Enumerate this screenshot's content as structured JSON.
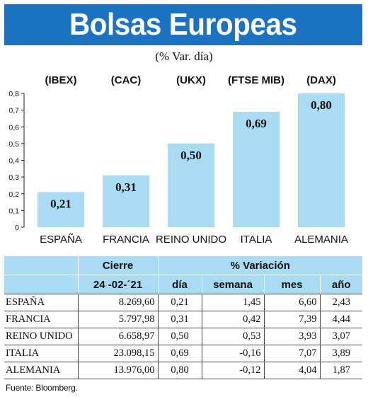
{
  "title": "Bolsas Europeas",
  "subtitle": "(% Var. día)",
  "colors": {
    "header_bg": "#1b72c0",
    "bar": "#a9dcf3",
    "table_header": "#a9dcf3"
  },
  "chart_data": {
    "type": "bar",
    "categories": [
      "ESPAÑA",
      "FRANCIA",
      "REINO UNIDO",
      "ITALIA",
      "ALEMANIA"
    ],
    "index_labels": [
      "(IBEX)",
      "(CAC)",
      "(UKX)",
      "(FTSE MIB)",
      "(DAX)"
    ],
    "values": [
      0.21,
      0.31,
      0.5,
      0.69,
      0.8
    ],
    "data_labels": [
      "0,21",
      "0,31",
      "0,50",
      "0,69",
      "0,80"
    ],
    "yticks": [
      "0",
      "0,1",
      "0,2",
      "0,3",
      "0,4",
      "0,5",
      "0,6",
      "0,7",
      "0,8"
    ],
    "ylim": [
      0,
      0.8
    ],
    "grid": false,
    "legend": "none"
  },
  "table": {
    "group_headers": {
      "close": "Cierre",
      "variation": "% Variación"
    },
    "sub_headers": [
      "",
      "24 -02-´21",
      "día",
      "semana",
      "mes",
      "año"
    ],
    "rows": [
      {
        "country": "ESPAÑA",
        "close": "8.269,60",
        "day": "0,21",
        "week": "1,45",
        "month": "6,60",
        "year": "2,43"
      },
      {
        "country": "FRANCIA",
        "close": "5.797,98",
        "day": "0,31",
        "week": "0,42",
        "month": "7,39",
        "year": "4,44"
      },
      {
        "country": "REINO UNIDO",
        "close": "6.658,97",
        "day": "0,50",
        "week": "0,53",
        "month": "3,93",
        "year": "3,07"
      },
      {
        "country": "ITALIA",
        "close": "23.098,15",
        "day": "0,69",
        "week": "-0,16",
        "month": "7,07",
        "year": "3,89"
      },
      {
        "country": "ALEMANIA",
        "close": "13.976,00",
        "day": "0,80",
        "week": "-0,12",
        "month": "4,04",
        "year": "1,87"
      }
    ]
  },
  "source": "Fuente: Bloomberg."
}
